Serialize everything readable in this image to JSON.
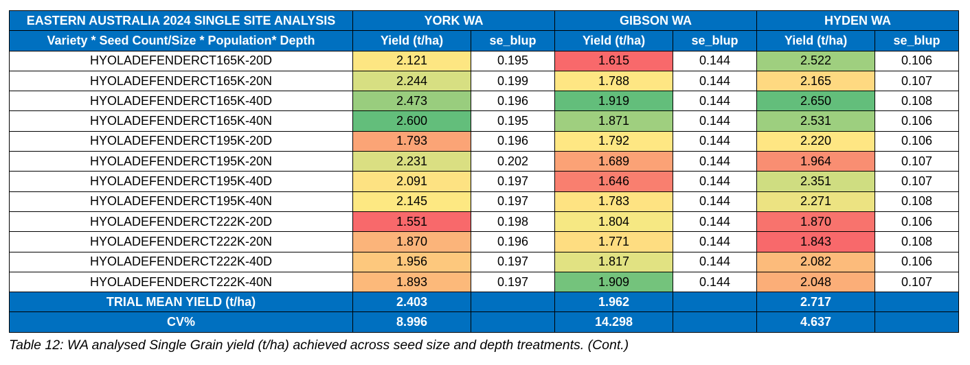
{
  "table": {
    "title": "EASTERN AUSTRALIA 2024 SINGLE SITE ANALYSIS",
    "row_header_label": "Variety * Seed Count/Size * Population* Depth",
    "sites": [
      {
        "name": "YORK WA",
        "yield_label": "Yield (t/ha)",
        "se_label": "se_blup"
      },
      {
        "name": "GIBSON WA",
        "yield_label": "Yield (t/ha)",
        "se_label": "se_blup"
      },
      {
        "name": "HYDEN WA",
        "yield_label": "Yield (t/ha)",
        "se_label": "se_blup"
      }
    ],
    "rows": [
      {
        "variety": "HYOLADEFENDERCT165K-20D",
        "cells": [
          {
            "yield": "2.121",
            "se": "0.195",
            "color": "#fde682"
          },
          {
            "yield": "1.615",
            "se": "0.144",
            "color": "#f8696b"
          },
          {
            "yield": "2.522",
            "se": "0.106",
            "color": "#9fcf7f"
          }
        ]
      },
      {
        "variety": "HYOLADEFENDERCT165K-20N",
        "cells": [
          {
            "yield": "2.244",
            "se": "0.199",
            "color": "#d7df82"
          },
          {
            "yield": "1.788",
            "se": "0.144",
            "color": "#fee683"
          },
          {
            "yield": "2.165",
            "se": "0.107",
            "color": "#fed981"
          }
        ]
      },
      {
        "variety": "HYOLADEFENDERCT165K-40D",
        "cells": [
          {
            "yield": "2.473",
            "se": "0.196",
            "color": "#99cd7e"
          },
          {
            "yield": "1.919",
            "se": "0.144",
            "color": "#63be7b"
          },
          {
            "yield": "2.650",
            "se": "0.108",
            "color": "#63be7b"
          }
        ]
      },
      {
        "variety": "HYOLADEFENDERCT165K-40N",
        "cells": [
          {
            "yield": "2.600",
            "se": "0.195",
            "color": "#63be7b"
          },
          {
            "yield": "1.871",
            "se": "0.144",
            "color": "#9fcf7f"
          },
          {
            "yield": "2.531",
            "se": "0.106",
            "color": "#9dcf7f"
          }
        ]
      },
      {
        "variety": "HYOLADEFENDERCT195K-20D",
        "cells": [
          {
            "yield": "1.793",
            "se": "0.196",
            "color": "#fba476"
          },
          {
            "yield": "1.792",
            "se": "0.144",
            "color": "#fee783"
          },
          {
            "yield": "2.220",
            "se": "0.106",
            "color": "#fee683"
          }
        ]
      },
      {
        "variety": "HYOLADEFENDERCT195K-20N",
        "cells": [
          {
            "yield": "2.231",
            "se": "0.202",
            "color": "#dadf82"
          },
          {
            "yield": "1.689",
            "se": "0.144",
            "color": "#fba276"
          },
          {
            "yield": "1.964",
            "se": "0.107",
            "color": "#f98e72"
          }
        ]
      },
      {
        "variety": "HYOLADEFENDERCT195K-40D",
        "cells": [
          {
            "yield": "2.091",
            "se": "0.197",
            "color": "#fde282"
          },
          {
            "yield": "1.646",
            "se": "0.144",
            "color": "#f97f6f"
          },
          {
            "yield": "2.351",
            "se": "0.107",
            "color": "#cfdd81"
          }
        ]
      },
      {
        "variety": "HYOLADEFENDERCT195K-40N",
        "cells": [
          {
            "yield": "2.145",
            "se": "0.197",
            "color": "#fde882"
          },
          {
            "yield": "1.783",
            "se": "0.144",
            "color": "#fee382"
          },
          {
            "yield": "2.271",
            "se": "0.108",
            "color": "#ece382"
          }
        ]
      },
      {
        "variety": "HYOLADEFENDERCT222K-20D",
        "cells": [
          {
            "yield": "1.551",
            "se": "0.198",
            "color": "#f8696b"
          },
          {
            "yield": "1.804",
            "se": "0.144",
            "color": "#f6e883"
          },
          {
            "yield": "1.870",
            "se": "0.106",
            "color": "#f8736d"
          }
        ]
      },
      {
        "variety": "HYOLADEFENDERCT222K-20N",
        "cells": [
          {
            "yield": "1.870",
            "se": "0.196",
            "color": "#fbb47a"
          },
          {
            "yield": "1.771",
            "se": "0.144",
            "color": "#fedd81"
          },
          {
            "yield": "1.843",
            "se": "0.108",
            "color": "#f8696b"
          }
        ]
      },
      {
        "variety": "HYOLADEFENDERCT222K-40D",
        "cells": [
          {
            "yield": "1.956",
            "se": "0.197",
            "color": "#fdc87d"
          },
          {
            "yield": "1.817",
            "se": "0.144",
            "color": "#e1e282"
          },
          {
            "yield": "2.082",
            "se": "0.106",
            "color": "#fcbb7b"
          }
        ]
      },
      {
        "variety": "HYOLADEFENDERCT222K-40N",
        "cells": [
          {
            "yield": "1.893",
            "se": "0.197",
            "color": "#fcb97a"
          },
          {
            "yield": "1.909",
            "se": "0.144",
            "color": "#74c37c"
          },
          {
            "yield": "2.048",
            "se": "0.107",
            "color": "#fbae78"
          }
        ]
      }
    ],
    "footer": [
      {
        "label": "TRIAL MEAN YIELD (t/ha)",
        "values": [
          "2.403",
          "1.962",
          "2.717"
        ]
      },
      {
        "label": "CV%",
        "values": [
          "8.996",
          "14.298",
          "4.637"
        ]
      }
    ],
    "header_color": "#0070c0"
  },
  "caption": "Table 12: WA analysed Single Grain yield (t/ha) achieved across seed size and depth treatments. (Cont.)"
}
